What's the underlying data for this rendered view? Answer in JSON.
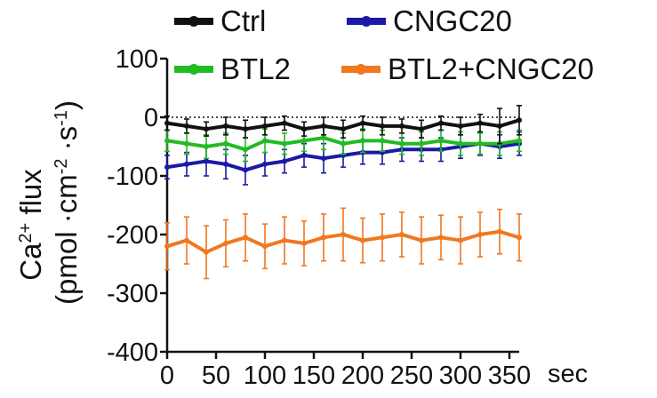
{
  "chart_data": {
    "type": "line",
    "x_unit": "sec",
    "ylabel_line1_base": "Ca",
    "ylabel_line1_sup": "2+",
    "ylabel_line1_rest": " flux",
    "ylabel_line2_parts": [
      "(pmol ·cm",
      "-2",
      " ·s",
      "-1",
      ")"
    ],
    "xlim": [
      0,
      360
    ],
    "ylim": [
      -400,
      100
    ],
    "x_ticks": [
      0,
      50,
      100,
      150,
      200,
      250,
      300,
      350
    ],
    "y_ticks": [
      100,
      0,
      -100,
      -200,
      -300,
      -400
    ],
    "zero_reference_line": "dotted",
    "grid": false,
    "legend_position": "top",
    "legend": [
      {
        "label": "Ctrl",
        "color": "#111111"
      },
      {
        "label": "CNGC20",
        "color": "#1a1aa6"
      },
      {
        "label": "BTL2",
        "color": "#22bb22"
      },
      {
        "label": "BTL2+CNGC20",
        "color": "#f07820"
      }
    ],
    "x": [
      0,
      20,
      40,
      60,
      80,
      100,
      120,
      140,
      160,
      180,
      200,
      220,
      240,
      260,
      280,
      300,
      320,
      340,
      360
    ],
    "series": [
      {
        "name": "BTL2+CNGC20",
        "color": "#f07820",
        "values": [
          -220,
          -210,
          -230,
          -215,
          -205,
          -220,
          -210,
          -215,
          -205,
          -200,
          -210,
          -205,
          -200,
          -210,
          -205,
          -210,
          -200,
          -195,
          -205
        ],
        "error": [
          40,
          40,
          45,
          40,
          40,
          38,
          40,
          38,
          40,
          45,
          38,
          40,
          38,
          40,
          38,
          40,
          38,
          38,
          40
        ]
      },
      {
        "name": "CNGC20",
        "color": "#1a1aa6",
        "values": [
          -85,
          -80,
          -75,
          -80,
          -90,
          -80,
          -75,
          -65,
          -70,
          -65,
          -60,
          -60,
          -55,
          -55,
          -55,
          -50,
          -45,
          -50,
          -45
        ],
        "error": [
          20,
          20,
          25,
          25,
          25,
          20,
          20,
          20,
          25,
          20,
          20,
          20,
          20,
          20,
          20,
          20,
          20,
          20,
          20
        ]
      },
      {
        "name": "BTL2",
        "color": "#22bb22",
        "values": [
          -40,
          -45,
          -50,
          -45,
          -55,
          -40,
          -45,
          -40,
          -35,
          -45,
          -40,
          -40,
          -45,
          -45,
          -40,
          -45,
          -45,
          -45,
          -40
        ],
        "error": [
          18,
          18,
          20,
          18,
          20,
          20,
          18,
          18,
          20,
          18,
          20,
          18,
          18,
          20,
          18,
          20,
          18,
          20,
          18
        ]
      },
      {
        "name": "Ctrl",
        "color": "#111111",
        "values": [
          -10,
          -15,
          -20,
          -15,
          -20,
          -15,
          -10,
          -20,
          -15,
          -20,
          -10,
          -15,
          -15,
          -20,
          -10,
          -15,
          -10,
          -15,
          -5
        ],
        "error": [
          12,
          12,
          12,
          15,
          15,
          15,
          12,
          12,
          15,
          15,
          12,
          15,
          12,
          15,
          12,
          15,
          15,
          30,
          25
        ]
      }
    ]
  }
}
